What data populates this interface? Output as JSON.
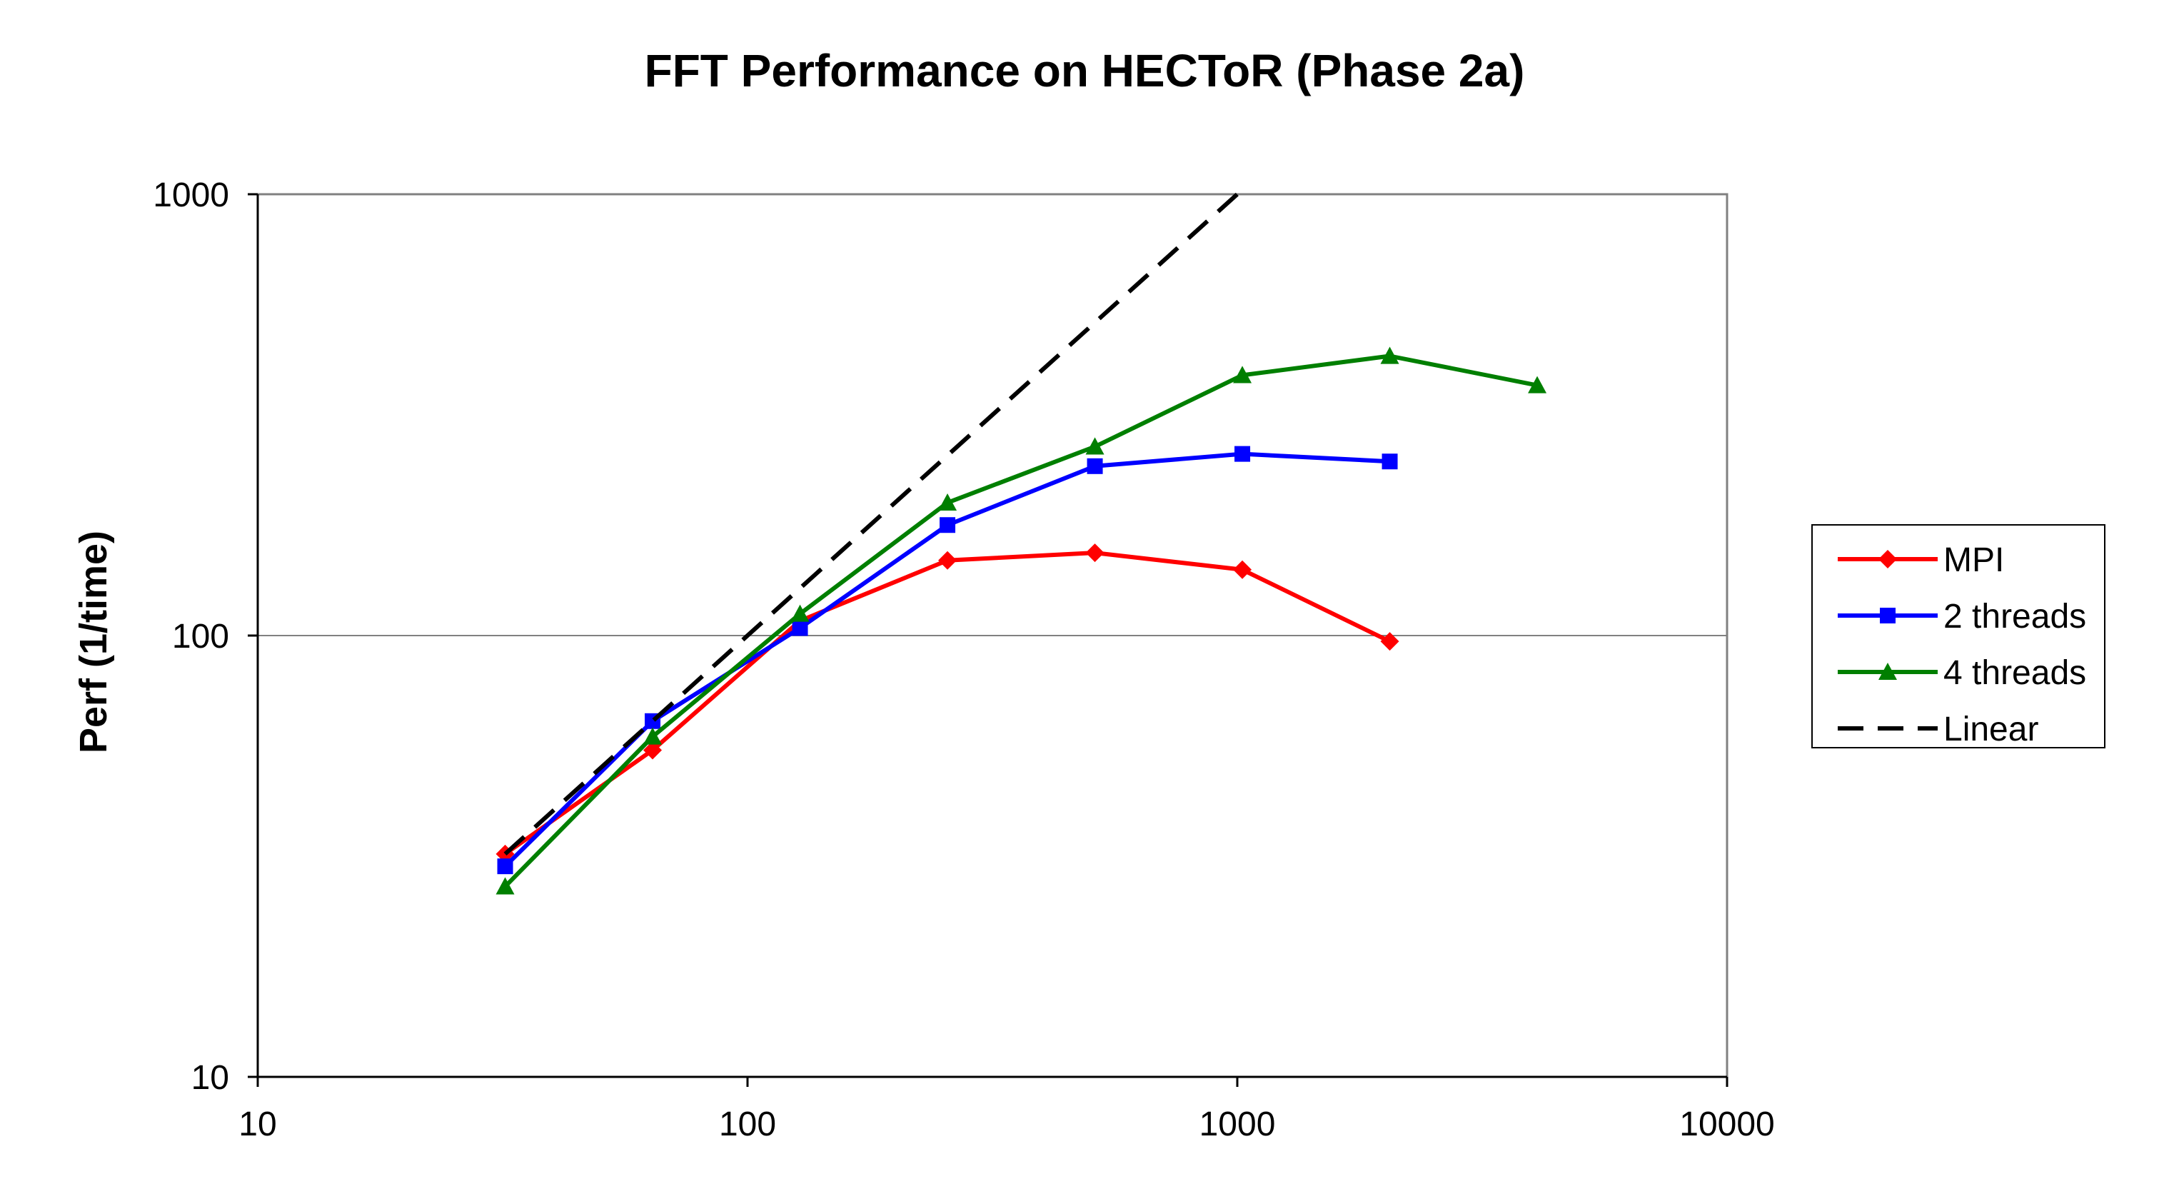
{
  "chart_data": {
    "type": "line",
    "title": "FFT Performance on HECToR (Phase 2a)",
    "xlabel": "",
    "ylabel": "Perf (1/time)",
    "xscale": "log",
    "yscale": "log",
    "xlim": [
      10,
      10000
    ],
    "ylim": [
      10,
      1000
    ],
    "x_ticks": [
      "10",
      "100",
      "1000",
      "10000"
    ],
    "y_ticks": [
      "10",
      "100",
      "1000"
    ],
    "grid": "horizontal major lines",
    "legend_position": "right",
    "series": [
      {
        "name": "MPI",
        "color": "#ff0000",
        "marker": "diamond",
        "x": [
          32,
          64,
          128,
          256,
          512,
          1024,
          2048
        ],
        "y": [
          32,
          55,
          108,
          148,
          154,
          141,
          97
        ]
      },
      {
        "name": "2 threads",
        "color": "#0000ff",
        "marker": "square",
        "x": [
          32,
          64,
          128,
          256,
          512,
          1024,
          2048
        ],
        "y": [
          30,
          64,
          104,
          178,
          242,
          258,
          248
        ]
      },
      {
        "name": "4 threads",
        "color": "#007f00",
        "marker": "triangle",
        "x": [
          32,
          64,
          128,
          256,
          512,
          1024,
          2048,
          4096
        ],
        "y": [
          27,
          59,
          112,
          200,
          268,
          389,
          430,
          369
        ]
      },
      {
        "name": "Linear",
        "color": "#000000",
        "marker": "none",
        "dash": true,
        "x": [
          32,
          64,
          128,
          256,
          512,
          1024
        ],
        "y": [
          32,
          64,
          128,
          256,
          512,
          1024
        ]
      }
    ]
  }
}
